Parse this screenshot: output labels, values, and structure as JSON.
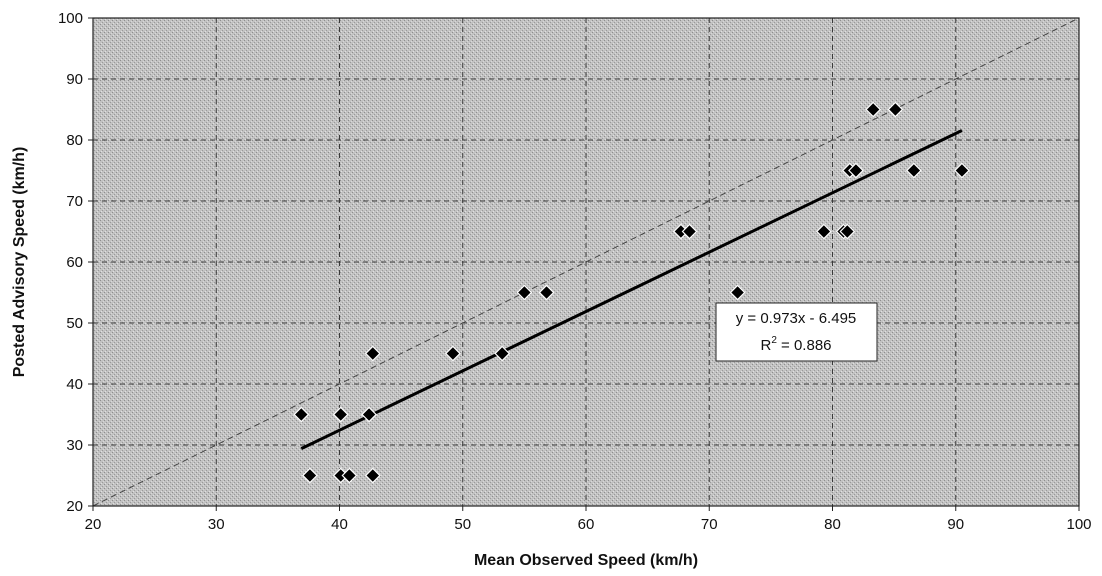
{
  "chart_data": {
    "type": "scatter",
    "title": "",
    "xlabel": "Mean Observed Speed (km/h)",
    "ylabel": "Posted Advisory Speed (km/h)",
    "xlim": [
      20,
      100
    ],
    "ylim": [
      20,
      100
    ],
    "xticks": [
      20,
      30,
      40,
      50,
      60,
      70,
      80,
      90,
      100
    ],
    "yticks": [
      20,
      30,
      40,
      50,
      60,
      70,
      80,
      90,
      100
    ],
    "grid": true,
    "series": [
      {
        "marker": "diamond",
        "color": "#000000",
        "points": [
          {
            "x": 36.9,
            "y": 35
          },
          {
            "x": 37.6,
            "y": 25
          },
          {
            "x": 40.1,
            "y": 35
          },
          {
            "x": 40.1,
            "y": 25
          },
          {
            "x": 40.8,
            "y": 25
          },
          {
            "x": 42.4,
            "y": 35
          },
          {
            "x": 42.7,
            "y": 45
          },
          {
            "x": 42.7,
            "y": 25
          },
          {
            "x": 49.2,
            "y": 45
          },
          {
            "x": 53.2,
            "y": 45
          },
          {
            "x": 55.0,
            "y": 55
          },
          {
            "x": 56.8,
            "y": 55
          },
          {
            "x": 67.7,
            "y": 65
          },
          {
            "x": 68.4,
            "y": 65
          },
          {
            "x": 72.3,
            "y": 55
          },
          {
            "x": 79.3,
            "y": 65
          },
          {
            "x": 80.9,
            "y": 65
          },
          {
            "x": 81.2,
            "y": 65
          },
          {
            "x": 81.4,
            "y": 75
          },
          {
            "x": 81.9,
            "y": 75
          },
          {
            "x": 83.3,
            "y": 85
          },
          {
            "x": 85.1,
            "y": 85
          },
          {
            "x": 86.6,
            "y": 75
          },
          {
            "x": 90.5,
            "y": 75
          }
        ]
      }
    ],
    "trendline": {
      "type": "linear",
      "slope": 0.973,
      "intercept": -6.495,
      "x_range": [
        36.9,
        90.5
      ],
      "equation_label": "y = 0.973x - 6.495",
      "r2_label_prefix": "R",
      "r2_label_sup": "2",
      "r2_label_value": " = 0.886"
    },
    "reference_line": {
      "style": "dashed",
      "from": [
        20,
        20
      ],
      "to": [
        100,
        100
      ]
    },
    "colors": {
      "plot_background": "#b9b9b9",
      "markers": "#000000",
      "trendline": "#000000",
      "grid": "#3a3a3a"
    }
  }
}
